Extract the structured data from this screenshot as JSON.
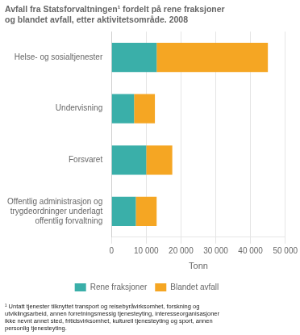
{
  "chart_data": {
    "type": "bar",
    "orientation": "horizontal",
    "stacked": true,
    "title": [
      "Avfall fra Statsforvaltningen¹ fordelt på rene fraksjoner",
      "og blandet avfall, etter aktivitetsområde. 2008"
    ],
    "categories": [
      "Offentlig administrasjon og\ntrygdeordninger underlagt\noffentlig forvaltning",
      "Forsvaret",
      "Undervisning",
      "Helse- og sosialtjenester"
    ],
    "series": [
      {
        "name": "Rene fraksjoner",
        "color": "#3aafa9",
        "values": [
          7000,
          10000,
          6500,
          13000
        ]
      },
      {
        "name": "Blandet avfall",
        "color": "#f5a623",
        "values": [
          6000,
          7500,
          6000,
          32000
        ]
      }
    ],
    "xlabel": "Tonn",
    "xlim": [
      0,
      50000
    ],
    "xticks": [
      0,
      {
        "value": 10000,
        "label": "10 000"
      },
      {
        "value": 20000,
        "label": "20 000"
      },
      {
        "value": 30000,
        "label": "30 000"
      },
      {
        "value": 40000,
        "label": "40 000"
      },
      {
        "value": 50000,
        "label": "50 000"
      }
    ],
    "grid": "x",
    "legend": "bottom",
    "footnote": [
      "¹ Untatt tjenester tilknyttet transport og reisebyråvirksomhet, forskning og",
      "utviklingsarbeid, annen forretningsmessig tjenesteyting, interesseorganisasjoner",
      "ikke nevnt annet sted, fritidsvirksomhet, kulturell tjenesteyting og sport, annen",
      "personlig tjenesteyting."
    ]
  }
}
